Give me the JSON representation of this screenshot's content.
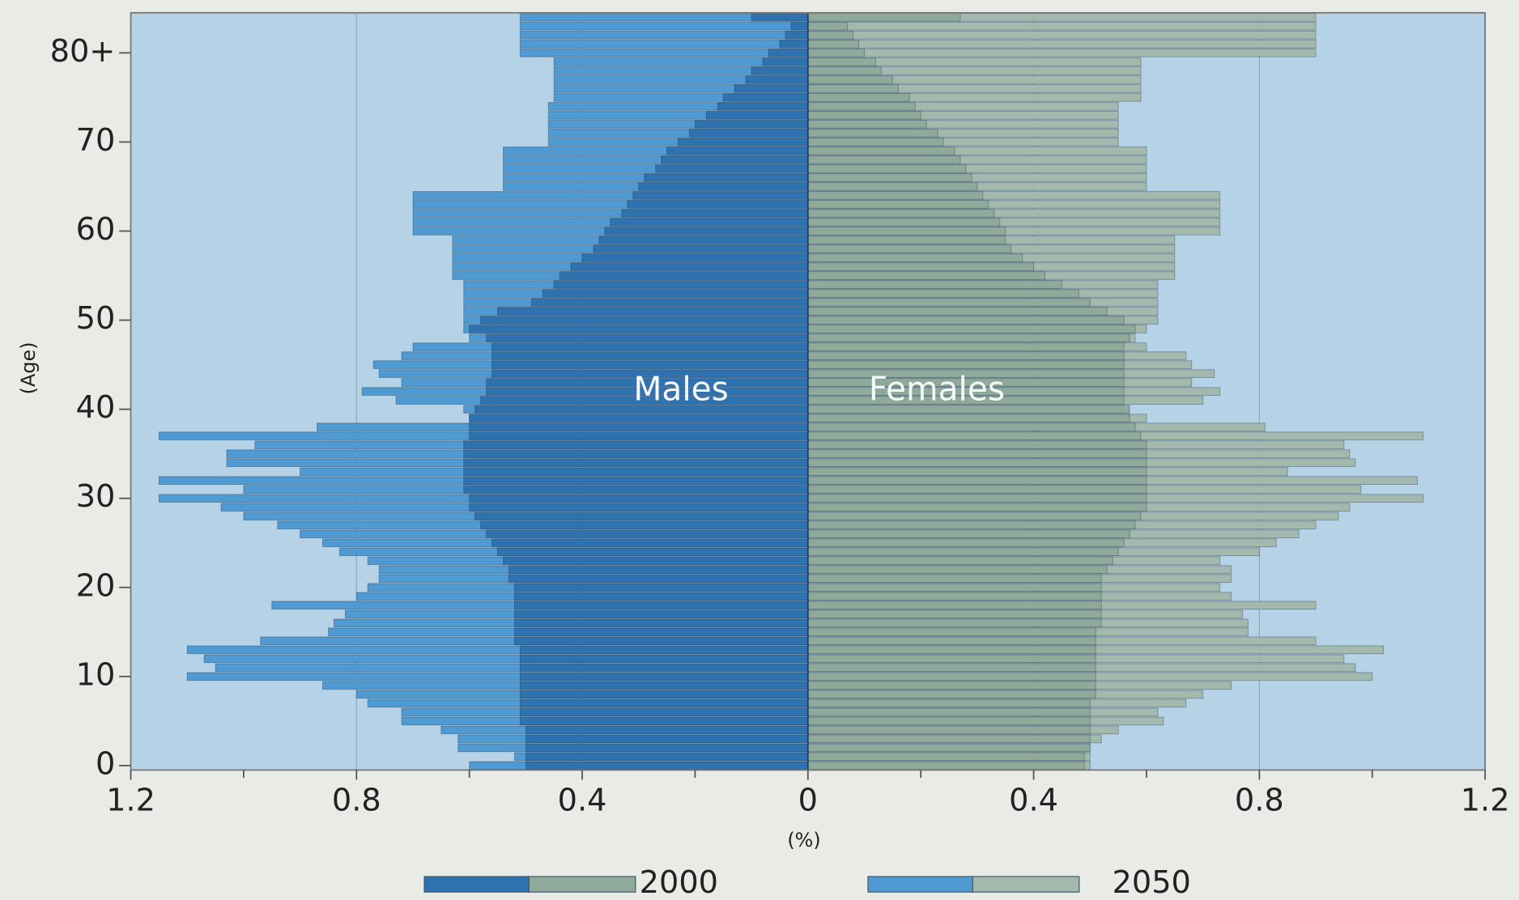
{
  "chart_data": {
    "type": "population-pyramid",
    "y_label": "(Age)",
    "x_label": "(%)",
    "annotations": [
      "Males",
      "Females"
    ],
    "y": [
      0,
      1,
      2,
      3,
      4,
      5,
      6,
      7,
      8,
      9,
      10,
      11,
      12,
      13,
      14,
      15,
      16,
      17,
      18,
      19,
      20,
      21,
      22,
      23,
      24,
      25,
      26,
      27,
      28,
      29,
      30,
      31,
      32,
      33,
      34,
      35,
      36,
      37,
      38,
      39,
      40,
      41,
      42,
      43,
      44,
      45,
      46,
      47,
      48,
      49,
      50,
      51,
      52,
      53,
      54,
      55,
      56,
      57,
      58,
      59,
      60,
      61,
      62,
      63,
      64,
      65,
      66,
      67,
      68,
      69,
      70,
      71,
      72,
      73,
      74,
      75,
      76,
      77,
      78,
      79,
      80,
      81,
      82,
      83,
      84
    ],
    "ylim": [
      -0.5,
      84.5
    ],
    "yticks": [
      0,
      10,
      20,
      30,
      40,
      50,
      60,
      70,
      {
        "value": 80,
        "label": "80+"
      }
    ],
    "xlim": [
      -1.2,
      1.2
    ],
    "xticks": [
      {
        "value": -1.2,
        "label": "1.2"
      },
      {
        "value": -0.8,
        "label": "0.8"
      },
      {
        "value": -0.4,
        "label": "0.4"
      },
      0,
      0.4,
      0.8,
      1.2
    ],
    "xminorticks": [
      -1,
      -0.6,
      -0.2,
      0.2,
      0.6,
      1
    ],
    "grid": true,
    "groups": [
      {
        "name": "2050",
        "male_color": "#4f9ad2",
        "female_color": "#a3b9ae",
        "males": [
          0.6,
          0.52,
          0.62,
          0.62,
          0.65,
          0.72,
          0.72,
          0.78,
          0.8,
          0.86,
          1.1,
          1.05,
          1.07,
          1.1,
          0.97,
          0.85,
          0.84,
          0.82,
          0.95,
          0.8,
          0.78,
          0.76,
          0.76,
          0.78,
          0.83,
          0.86,
          0.9,
          0.94,
          1.0,
          1.04,
          1.15,
          1.0,
          1.15,
          0.9,
          1.03,
          1.03,
          0.98,
          1.15,
          0.87,
          0.6,
          0.61,
          0.73,
          0.79,
          0.72,
          0.76,
          0.77,
          0.72,
          0.7,
          0.6,
          0.61,
          0.61,
          0.61,
          0.61,
          0.61,
          0.61,
          0.63,
          0.63,
          0.63,
          0.63,
          0.63,
          0.7,
          0.7,
          0.7,
          0.7,
          0.7,
          0.54,
          0.54,
          0.54,
          0.54,
          0.54,
          0.46,
          0.46,
          0.46,
          0.46,
          0.46,
          0.45,
          0.45,
          0.45,
          0.45,
          0.45,
          0.51,
          0.51,
          0.51,
          0.51,
          0.51
        ],
        "females": [
          0.5,
          0.5,
          0.5,
          0.52,
          0.55,
          0.63,
          0.62,
          0.67,
          0.7,
          0.75,
          1.0,
          0.97,
          0.95,
          1.02,
          0.9,
          0.78,
          0.78,
          0.77,
          0.9,
          0.75,
          0.73,
          0.75,
          0.75,
          0.73,
          0.8,
          0.83,
          0.87,
          0.9,
          0.94,
          0.96,
          1.09,
          0.98,
          1.08,
          0.85,
          0.97,
          0.96,
          0.95,
          1.09,
          0.81,
          0.6,
          0.56,
          0.7,
          0.73,
          0.68,
          0.72,
          0.68,
          0.67,
          0.6,
          0.58,
          0.6,
          0.62,
          0.62,
          0.62,
          0.62,
          0.62,
          0.65,
          0.65,
          0.65,
          0.65,
          0.65,
          0.73,
          0.73,
          0.73,
          0.73,
          0.73,
          0.6,
          0.6,
          0.6,
          0.6,
          0.6,
          0.55,
          0.55,
          0.55,
          0.55,
          0.55,
          0.59,
          0.59,
          0.59,
          0.59,
          0.59,
          0.9,
          0.9,
          0.9,
          0.9,
          0.9
        ]
      },
      {
        "name": "2000",
        "male_color": "#2f72b0",
        "female_color": "#8fa99a",
        "males": [
          0.5,
          0.5,
          0.5,
          0.5,
          0.5,
          0.51,
          0.51,
          0.51,
          0.51,
          0.51,
          0.51,
          0.51,
          0.51,
          0.51,
          0.52,
          0.52,
          0.52,
          0.52,
          0.52,
          0.52,
          0.52,
          0.53,
          0.53,
          0.54,
          0.55,
          0.56,
          0.57,
          0.58,
          0.59,
          0.6,
          0.6,
          0.61,
          0.61,
          0.61,
          0.61,
          0.61,
          0.61,
          0.6,
          0.6,
          0.6,
          0.59,
          0.58,
          0.57,
          0.57,
          0.56,
          0.56,
          0.56,
          0.56,
          0.57,
          0.6,
          0.58,
          0.55,
          0.49,
          0.47,
          0.45,
          0.44,
          0.42,
          0.4,
          0.38,
          0.37,
          0.36,
          0.35,
          0.33,
          0.32,
          0.31,
          0.3,
          0.29,
          0.27,
          0.26,
          0.25,
          0.23,
          0.21,
          0.2,
          0.18,
          0.16,
          0.15,
          0.13,
          0.11,
          0.1,
          0.08,
          0.07,
          0.05,
          0.04,
          0.03,
          0.1
        ],
        "females": [
          0.49,
          0.49,
          0.5,
          0.5,
          0.5,
          0.5,
          0.5,
          0.5,
          0.51,
          0.51,
          0.51,
          0.51,
          0.51,
          0.51,
          0.51,
          0.51,
          0.52,
          0.52,
          0.52,
          0.52,
          0.52,
          0.52,
          0.53,
          0.54,
          0.55,
          0.56,
          0.57,
          0.58,
          0.59,
          0.6,
          0.6,
          0.6,
          0.6,
          0.6,
          0.6,
          0.6,
          0.6,
          0.59,
          0.58,
          0.57,
          0.57,
          0.56,
          0.56,
          0.56,
          0.56,
          0.56,
          0.56,
          0.56,
          0.57,
          0.58,
          0.56,
          0.53,
          0.5,
          0.48,
          0.45,
          0.42,
          0.4,
          0.38,
          0.36,
          0.35,
          0.35,
          0.34,
          0.33,
          0.32,
          0.31,
          0.3,
          0.29,
          0.28,
          0.27,
          0.26,
          0.24,
          0.23,
          0.21,
          0.2,
          0.19,
          0.18,
          0.16,
          0.15,
          0.13,
          0.12,
          0.1,
          0.09,
          0.08,
          0.07,
          0.27
        ]
      }
    ]
  }
}
